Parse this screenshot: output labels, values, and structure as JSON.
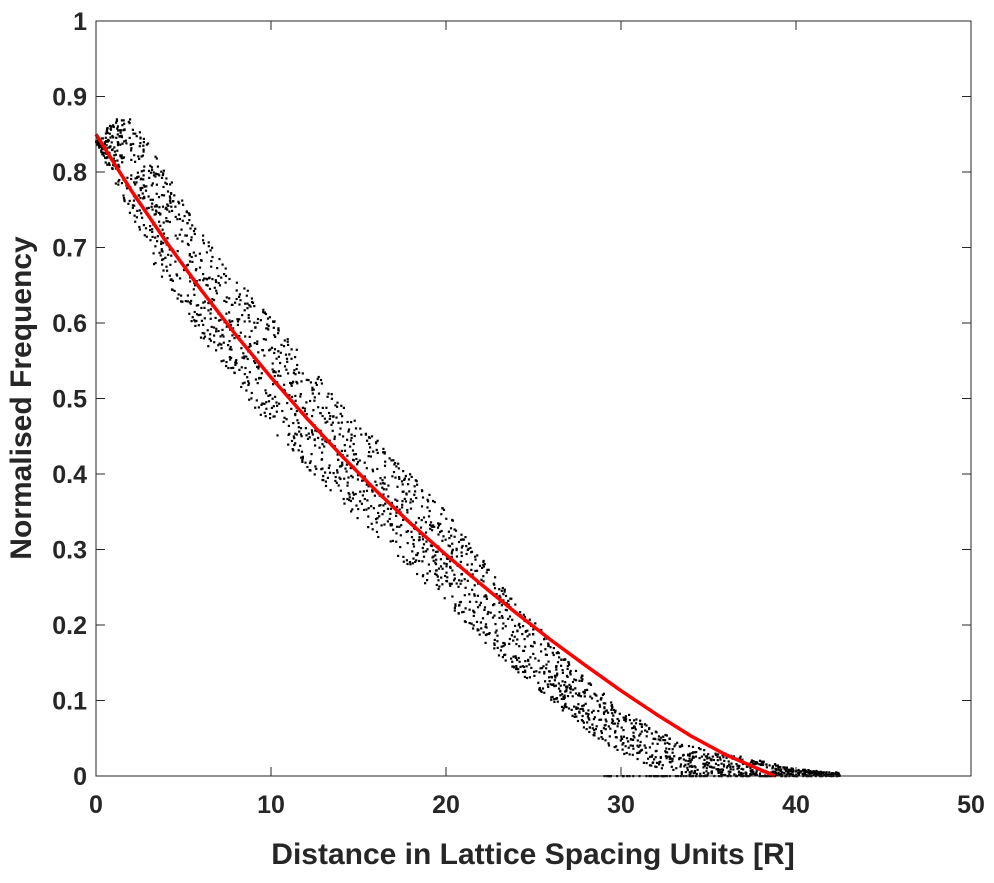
{
  "chart_data": {
    "type": "scatter",
    "title": "",
    "xlabel": "Distance in Lattice Spacing Units [R]",
    "ylabel": "Normalised Frequency",
    "xlim": [
      0,
      50
    ],
    "ylim": [
      0,
      1
    ],
    "x_ticks": [
      "0",
      "10",
      "20",
      "30",
      "40",
      "50"
    ],
    "y_ticks": [
      "0",
      "0.1",
      "0.2",
      "0.3",
      "0.4",
      "0.5",
      "0.6",
      "0.7",
      "0.8",
      "0.9",
      "1"
    ],
    "grid": false,
    "box": true,
    "colors": {
      "points": "#000000",
      "fit": "#ff0000",
      "axes": "#262626"
    },
    "scatter_envelope": {
      "description_x": [
        0,
        1,
        2,
        3,
        4,
        5,
        6,
        8,
        10,
        12,
        15,
        18,
        20,
        22,
        24,
        26,
        28,
        30,
        32,
        34,
        36,
        38,
        40,
        42
      ],
      "upper": [
        0.84,
        0.87,
        0.87,
        0.84,
        0.8,
        0.76,
        0.72,
        0.66,
        0.61,
        0.55,
        0.47,
        0.4,
        0.35,
        0.29,
        0.23,
        0.18,
        0.13,
        0.09,
        0.06,
        0.04,
        0.03,
        0.02,
        0.01,
        0.005
      ],
      "lower": [
        0.84,
        0.79,
        0.74,
        0.69,
        0.65,
        0.62,
        0.58,
        0.52,
        0.46,
        0.41,
        0.34,
        0.27,
        0.23,
        0.18,
        0.14,
        0.1,
        0.06,
        0.03,
        0.01,
        0.0,
        0.0,
        0.0,
        0.0,
        0.0
      ]
    },
    "series": [
      {
        "kind": "fit_line",
        "x": [
          0,
          2,
          4,
          6,
          8,
          10,
          12,
          14,
          16,
          18,
          20,
          22,
          24,
          26,
          28,
          30,
          32,
          34,
          36,
          38,
          38.8
        ],
        "y": [
          0.85,
          0.776,
          0.708,
          0.644,
          0.584,
          0.528,
          0.475,
          0.425,
          0.378,
          0.334,
          0.293,
          0.254,
          0.216,
          0.18,
          0.146,
          0.113,
          0.082,
          0.053,
          0.028,
          0.008,
          0.0
        ]
      }
    ]
  }
}
